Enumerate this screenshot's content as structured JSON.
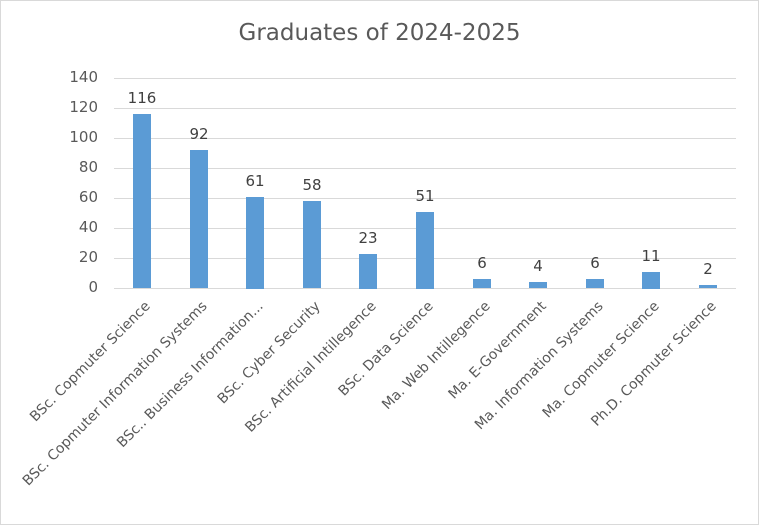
{
  "chart_data": {
    "type": "bar",
    "title": "Graduates of 2024-2025",
    "xlabel": "",
    "ylabel": "",
    "ylim": [
      0,
      140
    ],
    "yticks": [
      0,
      20,
      40,
      60,
      80,
      100,
      120,
      140
    ],
    "grid": true,
    "legend": "none",
    "data_labels": true,
    "bar_color": "#5b9bd5",
    "categories": [
      "BSc. Copmuter Science",
      "BSc. Copmuter Information Systems",
      "BSc.. Business Information...",
      "BSc. Cyber Security",
      "BSc. Artificial Intillegence",
      "BSc. Data Science",
      "Ma. Web Intillegence",
      "Ma. E-Government",
      "Ma. Information Systems",
      "Ma. Copmuter Science",
      "Ph.D. Copmuter Science"
    ],
    "values": [
      116,
      92,
      61,
      58,
      23,
      51,
      6,
      4,
      6,
      11,
      2
    ]
  }
}
